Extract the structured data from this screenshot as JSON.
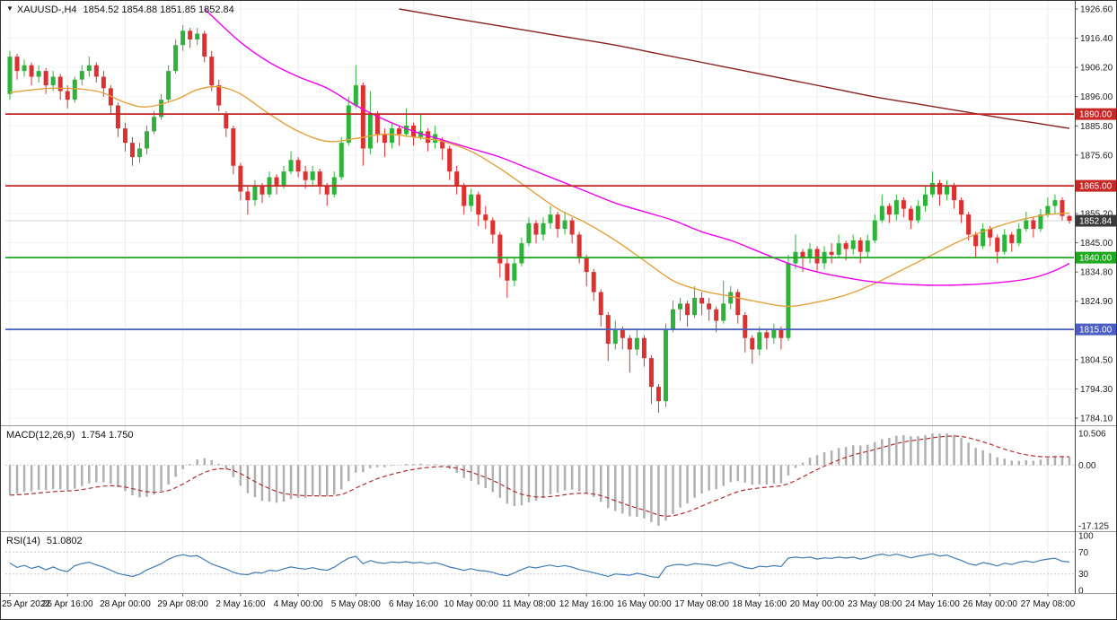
{
  "window": {
    "collapse_icon": "▼",
    "symbol_period": "XAUUSD-,H4",
    "ohlc_text": "1854.52 1854.88 1851.85 1852.84"
  },
  "chart_data": {
    "type": "candlestick",
    "symbol": "XAUUSD",
    "timeframe": "H4",
    "colors": {
      "bull": "#2db23a",
      "bear": "#dd3030"
    },
    "price_axis": {
      "ticks": [
        "1926.60",
        "1916.40",
        "1906.20",
        "1896.00",
        "1885.80",
        "1875.60",
        "1865.40",
        "1855.20",
        "1845.00",
        "1834.80",
        "1824.90",
        "1814.70",
        "1804.50",
        "1794.30",
        "1784.10"
      ]
    },
    "time_labels": [
      {
        "i": 0,
        "t": "25 Apr 2022"
      },
      {
        "i": 8,
        "t": "26 Apr 16:00"
      },
      {
        "i": 16,
        "t": "28 Apr 00:00"
      },
      {
        "i": 24,
        "t": "29 Apr 08:00"
      },
      {
        "i": 32,
        "t": "2 May 16:00"
      },
      {
        "i": 40,
        "t": "4 May 00:00"
      },
      {
        "i": 48,
        "t": "5 May 08:00"
      },
      {
        "i": 56,
        "t": "6 May 16:00"
      },
      {
        "i": 64,
        "t": "10 May 00:00"
      },
      {
        "i": 72,
        "t": "11 May 08:00"
      },
      {
        "i": 80,
        "t": "12 May 16:00"
      },
      {
        "i": 88,
        "t": "16 May 00:00"
      },
      {
        "i": 96,
        "t": "17 May 08:00"
      },
      {
        "i": 104,
        "t": "18 May 16:00"
      },
      {
        "i": 112,
        "t": "20 May 00:00"
      },
      {
        "i": 120,
        "t": "23 May 08:00"
      },
      {
        "i": 128,
        "t": "24 May 16:00"
      },
      {
        "i": 136,
        "t": "26 May 00:00"
      },
      {
        "i": 144,
        "t": "27 May 08:00"
      }
    ],
    "candles": [
      [
        1897,
        1912,
        1895,
        1910
      ],
      [
        1910,
        1911,
        1902,
        1905
      ],
      [
        1905,
        1909,
        1903,
        1907
      ],
      [
        1907,
        1908,
        1900,
        1903
      ],
      [
        1903,
        1907,
        1901,
        1905
      ],
      [
        1905,
        1906,
        1897,
        1900
      ],
      [
        1900,
        1905,
        1898,
        1903
      ],
      [
        1903,
        1904,
        1895,
        1898
      ],
      [
        1898,
        1900,
        1892,
        1895
      ],
      [
        1895,
        1903,
        1894,
        1902
      ],
      [
        1902,
        1907,
        1900,
        1905
      ],
      [
        1905,
        1910,
        1903,
        1907
      ],
      [
        1907,
        1908,
        1901,
        1903
      ],
      [
        1903,
        1905,
        1896,
        1899
      ],
      [
        1899,
        1900,
        1890,
        1893
      ],
      [
        1893,
        1894,
        1882,
        1885
      ],
      [
        1885,
        1887,
        1877,
        1880
      ],
      [
        1880,
        1882,
        1872,
        1875
      ],
      [
        1875,
        1880,
        1873,
        1878
      ],
      [
        1878,
        1886,
        1876,
        1884
      ],
      [
        1884,
        1891,
        1883,
        1889
      ],
      [
        1889,
        1897,
        1888,
        1895
      ],
      [
        1895,
        1907,
        1894,
        1905
      ],
      [
        1905,
        1916,
        1904,
        1914
      ],
      [
        1914,
        1921,
        1912,
        1919
      ],
      [
        1919,
        1920,
        1913,
        1916
      ],
      [
        1916,
        1920,
        1914,
        1918
      ],
      [
        1918,
        1919,
        1908,
        1910
      ],
      [
        1910,
        1912,
        1898,
        1900
      ],
      [
        1900,
        1902,
        1891,
        1893
      ],
      [
        1890,
        1891,
        1882,
        1885
      ],
      [
        1885,
        1886,
        1869,
        1872
      ],
      [
        1872,
        1873,
        1860,
        1863
      ],
      [
        1863,
        1865,
        1855,
        1860
      ],
      [
        1860,
        1867,
        1858,
        1865
      ],
      [
        1865,
        1866,
        1859,
        1862
      ],
      [
        1862,
        1870,
        1861,
        1868
      ],
      [
        1868,
        1869,
        1862,
        1865
      ],
      [
        1865,
        1872,
        1864,
        1870
      ],
      [
        1870,
        1877,
        1869,
        1874
      ],
      [
        1874,
        1875,
        1868,
        1870
      ],
      [
        1870,
        1872,
        1864,
        1867
      ],
      [
        1867,
        1872,
        1865,
        1870
      ],
      [
        1870,
        1871,
        1862,
        1865
      ],
      [
        1865,
        1866,
        1858,
        1862
      ],
      [
        1862,
        1870,
        1861,
        1868
      ],
      [
        1868,
        1882,
        1867,
        1880
      ],
      [
        1880,
        1896,
        1879,
        1893
      ],
      [
        1893,
        1907,
        1892,
        1900
      ],
      [
        1900,
        1901,
        1872,
        1878
      ],
      [
        1878,
        1898,
        1876,
        1890
      ],
      [
        1890,
        1891,
        1880,
        1883
      ],
      [
        1883,
        1885,
        1875,
        1880
      ],
      [
        1880,
        1887,
        1878,
        1885
      ],
      [
        1885,
        1886,
        1879,
        1883
      ],
      [
        1883,
        1892,
        1882,
        1886
      ],
      [
        1886,
        1887,
        1879,
        1882
      ],
      [
        1882,
        1890,
        1881,
        1884
      ],
      [
        1884,
        1885,
        1877,
        1880
      ],
      [
        1880,
        1886,
        1878,
        1883
      ],
      [
        1881,
        1882,
        1874,
        1878
      ],
      [
        1878,
        1879,
        1867,
        1870
      ],
      [
        1870,
        1872,
        1862,
        1865
      ],
      [
        1865,
        1866,
        1855,
        1858
      ],
      [
        1858,
        1864,
        1856,
        1862
      ],
      [
        1862,
        1863,
        1851,
        1855
      ],
      [
        1855,
        1858,
        1850,
        1853
      ],
      [
        1853,
        1854,
        1845,
        1848
      ],
      [
        1848,
        1849,
        1833,
        1838
      ],
      [
        1838,
        1840,
        1826,
        1832
      ],
      [
        1832,
        1840,
        1830,
        1838
      ],
      [
        1838,
        1847,
        1837,
        1845
      ],
      [
        1845,
        1854,
        1844,
        1852
      ],
      [
        1852,
        1853,
        1845,
        1848
      ],
      [
        1848,
        1854,
        1846,
        1852
      ],
      [
        1852,
        1858,
        1850,
        1855
      ],
      [
        1855,
        1856,
        1847,
        1850
      ],
      [
        1850,
        1856,
        1848,
        1853
      ],
      [
        1853,
        1854,
        1845,
        1848
      ],
      [
        1848,
        1849,
        1838,
        1840
      ],
      [
        1840,
        1841,
        1830,
        1835
      ],
      [
        1835,
        1836,
        1825,
        1828
      ],
      [
        1828,
        1829,
        1816,
        1820
      ],
      [
        1820,
        1821,
        1804,
        1810
      ],
      [
        1810,
        1818,
        1808,
        1815
      ],
      [
        1815,
        1816,
        1808,
        1812
      ],
      [
        1812,
        1813,
        1800,
        1808
      ],
      [
        1808,
        1815,
        1806,
        1812
      ],
      [
        1812,
        1813,
        1802,
        1805
      ],
      [
        1805,
        1806,
        1789,
        1795
      ],
      [
        1795,
        1796,
        1786,
        1790
      ],
      [
        1790,
        1817,
        1788,
        1815
      ],
      [
        1815,
        1825,
        1814,
        1822
      ],
      [
        1822,
        1826,
        1818,
        1824
      ],
      [
        1824,
        1825,
        1816,
        1820
      ],
      [
        1820,
        1830,
        1819,
        1826
      ],
      [
        1826,
        1828,
        1820,
        1824
      ],
      [
        1824,
        1826,
        1818,
        1822
      ],
      [
        1822,
        1823,
        1814,
        1818
      ],
      [
        1818,
        1832,
        1817,
        1824
      ],
      [
        1824,
        1830,
        1822,
        1828
      ],
      [
        1828,
        1829,
        1817,
        1820
      ],
      [
        1820,
        1821,
        1807,
        1812
      ],
      [
        1812,
        1813,
        1803,
        1808
      ],
      [
        1808,
        1816,
        1806,
        1814
      ],
      [
        1814,
        1815,
        1808,
        1812
      ],
      [
        1812,
        1817,
        1810,
        1815
      ],
      [
        1815,
        1816,
        1808,
        1812
      ],
      [
        1812,
        1841,
        1811,
        1838
      ],
      [
        1838,
        1848,
        1836,
        1842
      ],
      [
        1842,
        1843,
        1835,
        1840
      ],
      [
        1840,
        1845,
        1838,
        1843
      ],
      [
        1843,
        1844,
        1835,
        1838
      ],
      [
        1838,
        1844,
        1836,
        1842
      ],
      [
        1842,
        1845,
        1838,
        1841
      ],
      [
        1841,
        1848,
        1840,
        1845
      ],
      [
        1845,
        1846,
        1839,
        1843
      ],
      [
        1843,
        1848,
        1841,
        1846
      ],
      [
        1846,
        1847,
        1838,
        1842
      ],
      [
        1842,
        1848,
        1840,
        1846
      ],
      [
        1846,
        1855,
        1845,
        1853
      ],
      [
        1853,
        1862,
        1852,
        1858
      ],
      [
        1858,
        1859,
        1852,
        1855
      ],
      [
        1855,
        1862,
        1853,
        1860
      ],
      [
        1860,
        1861,
        1854,
        1857
      ],
      [
        1857,
        1858,
        1850,
        1853
      ],
      [
        1853,
        1860,
        1852,
        1858
      ],
      [
        1858,
        1865,
        1856,
        1862
      ],
      [
        1862,
        1870,
        1861,
        1866
      ],
      [
        1866,
        1867,
        1858,
        1862
      ],
      [
        1862,
        1867,
        1860,
        1865
      ],
      [
        1865,
        1866,
        1857,
        1860
      ],
      [
        1860,
        1861,
        1852,
        1855
      ],
      [
        1855,
        1856,
        1846,
        1848
      ],
      [
        1848,
        1849,
        1840,
        1844
      ],
      [
        1844,
        1852,
        1843,
        1850
      ],
      [
        1850,
        1851,
        1844,
        1847
      ],
      [
        1847,
        1848,
        1838,
        1842
      ],
      [
        1842,
        1850,
        1841,
        1848
      ],
      [
        1848,
        1849,
        1842,
        1845
      ],
      [
        1845,
        1852,
        1844,
        1850
      ],
      [
        1850,
        1856,
        1849,
        1853
      ],
      [
        1853,
        1854,
        1847,
        1850
      ],
      [
        1850,
        1857,
        1849,
        1855
      ],
      [
        1855,
        1861,
        1854,
        1858
      ],
      [
        1858,
        1862,
        1855,
        1860
      ],
      [
        1860,
        1861,
        1853,
        1854.5
      ],
      [
        1854.52,
        1854.88,
        1851.85,
        1852.84
      ]
    ],
    "hlines": [
      {
        "price": 1890.0,
        "label": "1890.00",
        "color": "#c62828"
      },
      {
        "price": 1865.0,
        "label": "1865.00",
        "color": "#c62828"
      },
      {
        "price": 1840.0,
        "label": "1840.00",
        "color": "#1fa81f"
      },
      {
        "price": 1815.0,
        "label": "1815.00",
        "color": "#4a5fc1"
      }
    ],
    "current_price": {
      "value": 1852.84,
      "label": "1852.84",
      "bg": "#3a3a3a"
    },
    "moving_averages": [
      {
        "name": "ma-fast-orange",
        "color": "#e3a23c",
        "points": [
          [
            0,
            1897.5
          ],
          [
            6,
            1899
          ],
          [
            12,
            1898
          ],
          [
            16,
            1894
          ],
          [
            19,
            1892.5
          ],
          [
            23,
            1895
          ],
          [
            26,
            1898.5
          ],
          [
            29,
            1899.5
          ],
          [
            32,
            1897
          ],
          [
            36,
            1890
          ],
          [
            40,
            1884
          ],
          [
            44,
            1880.5
          ],
          [
            48,
            1881.5
          ],
          [
            52,
            1883
          ],
          [
            56,
            1882
          ],
          [
            60,
            1880.5
          ],
          [
            64,
            1877
          ],
          [
            68,
            1871
          ],
          [
            72,
            1864
          ],
          [
            76,
            1857
          ],
          [
            80,
            1852
          ],
          [
            84,
            1846
          ],
          [
            88,
            1839
          ],
          [
            92,
            1832
          ],
          [
            96,
            1828.5
          ],
          [
            100,
            1826.5
          ],
          [
            104,
            1824.5
          ],
          [
            108,
            1823
          ],
          [
            112,
            1824.5
          ],
          [
            116,
            1827
          ],
          [
            120,
            1831
          ],
          [
            124,
            1836
          ],
          [
            128,
            1841
          ],
          [
            132,
            1846
          ],
          [
            136,
            1850
          ],
          [
            140,
            1853
          ],
          [
            144,
            1855
          ],
          [
            147,
            1855.5
          ]
        ]
      },
      {
        "name": "ma-medium-magenta",
        "color": "#f000f0",
        "points": [
          [
            27,
            1926.6
          ],
          [
            32,
            1915
          ],
          [
            36,
            1908
          ],
          [
            40,
            1903
          ],
          [
            44,
            1899
          ],
          [
            48,
            1893
          ],
          [
            52,
            1888
          ],
          [
            56,
            1884
          ],
          [
            60,
            1881
          ],
          [
            64,
            1878
          ],
          [
            68,
            1875
          ],
          [
            72,
            1871
          ],
          [
            76,
            1867
          ],
          [
            80,
            1863
          ],
          [
            84,
            1859
          ],
          [
            88,
            1856
          ],
          [
            92,
            1853
          ],
          [
            96,
            1849
          ],
          [
            100,
            1846
          ],
          [
            104,
            1842
          ],
          [
            108,
            1838
          ],
          [
            112,
            1835
          ],
          [
            116,
            1833
          ],
          [
            120,
            1831.5
          ],
          [
            126,
            1830.5
          ],
          [
            132,
            1830.5
          ],
          [
            138,
            1831.5
          ],
          [
            142,
            1833
          ],
          [
            145,
            1835.5
          ],
          [
            147,
            1838
          ]
        ]
      },
      {
        "name": "ma-slow-darkred",
        "color": "#8b1f1f",
        "points": [
          [
            54,
            1926.6
          ],
          [
            60,
            1924
          ],
          [
            66,
            1921.5
          ],
          [
            72,
            1919
          ],
          [
            78,
            1916.5
          ],
          [
            84,
            1914
          ],
          [
            90,
            1911
          ],
          [
            96,
            1908
          ],
          [
            102,
            1905
          ],
          [
            108,
            1902
          ],
          [
            114,
            1899
          ],
          [
            120,
            1896
          ],
          [
            126,
            1893.5
          ],
          [
            132,
            1891
          ],
          [
            138,
            1888.5
          ],
          [
            142,
            1887
          ],
          [
            147,
            1885
          ]
        ]
      }
    ],
    "macd": {
      "label": "MACD(12,26,9)",
      "values": "1.754 1.750",
      "fast": 12,
      "slow": 26,
      "signal": 9,
      "axis_labels": [
        "10.506",
        "0.00",
        "-17.125"
      ],
      "histogram_color": "#b0b0b0",
      "signal_color": "#b03030"
    },
    "rsi": {
      "label": "RSI(14)",
      "value": "51.0802",
      "period": 14,
      "axis_labels": [
        "100",
        "70",
        "30",
        "0"
      ],
      "levels": [
        70,
        30
      ],
      "line_color": "#3e7bb6"
    }
  }
}
